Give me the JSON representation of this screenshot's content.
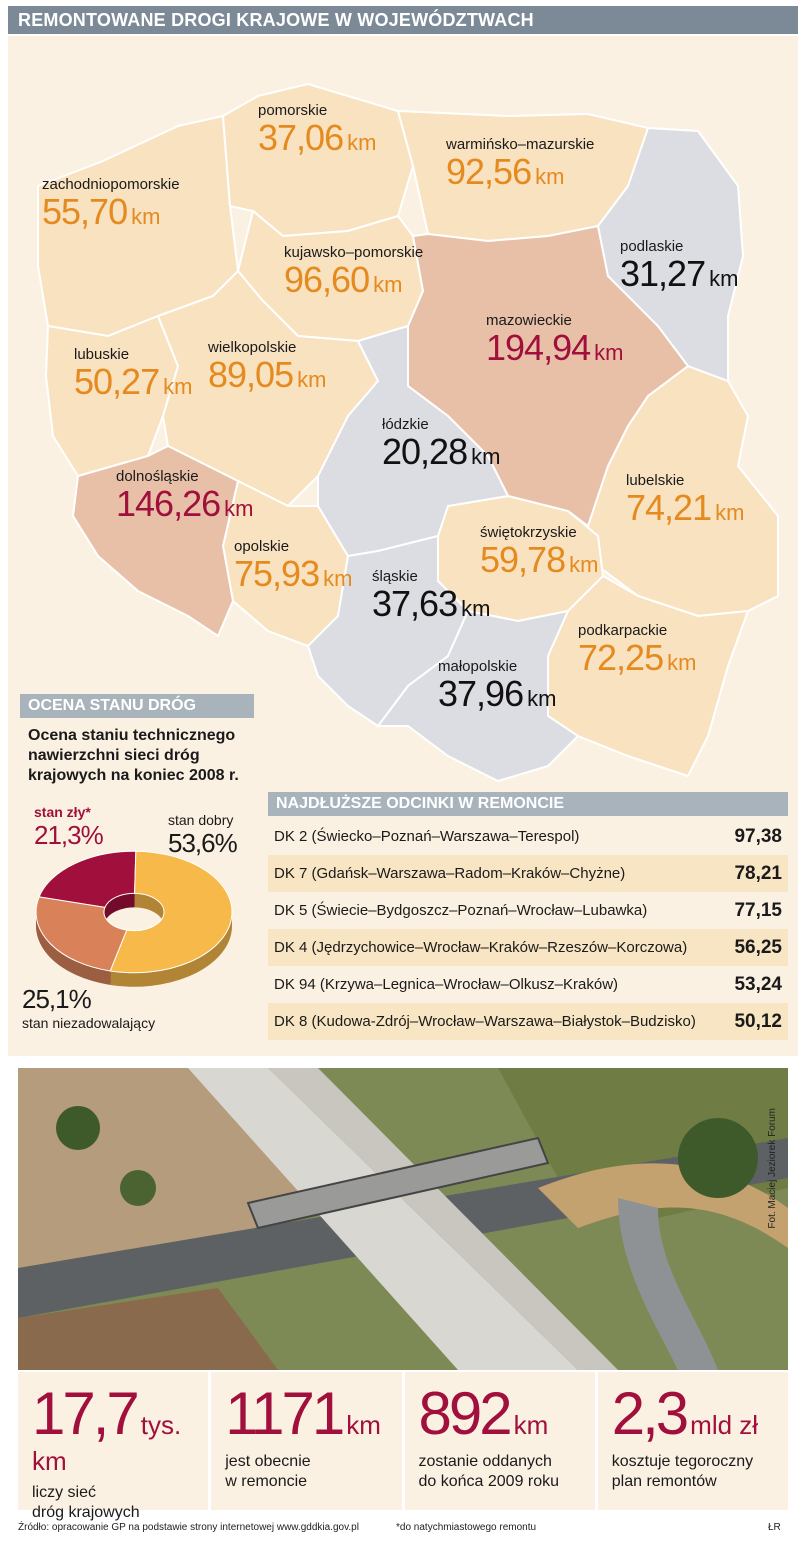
{
  "title": "REMONTOWANE DROGI KRAJOWE W WOJEWÓDZTWACH",
  "unit": "km",
  "regions": [
    {
      "id": "pomorskie",
      "name": "pomorskie",
      "value": "37,06"
    },
    {
      "id": "warminsko",
      "name": "warmińsko–mazurskie",
      "value": "92,56"
    },
    {
      "id": "zachodnio",
      "name": "zachodniopomorskie",
      "value": "55,70"
    },
    {
      "id": "kujawsko",
      "name": "kujawsko–pomorskie",
      "value": "96,60"
    },
    {
      "id": "podlaskie",
      "name": "podlaskie",
      "value": "31,27"
    },
    {
      "id": "mazowieckie",
      "name": "mazowieckie",
      "value": "194,94"
    },
    {
      "id": "lubuskie",
      "name": "lubuskie",
      "value": "50,27"
    },
    {
      "id": "wielkopolskie",
      "name": "wielkopolskie",
      "value": "89,05"
    },
    {
      "id": "lodzkie",
      "name": "łódzkie",
      "value": "20,28"
    },
    {
      "id": "dolnoslaskie",
      "name": "dolnośląskie",
      "value": "146,26"
    },
    {
      "id": "lubelskie",
      "name": "lubelskie",
      "value": "74,21"
    },
    {
      "id": "swietokrzyskie",
      "name": "świętokrzyskie",
      "value": "59,78"
    },
    {
      "id": "opolskie",
      "name": "opolskie",
      "value": "75,93"
    },
    {
      "id": "slaskie",
      "name": "śląskie",
      "value": "37,63"
    },
    {
      "id": "podkarpackie",
      "name": "podkarpackie",
      "value": "72,25"
    },
    {
      "id": "malopolskie",
      "name": "małopolskie",
      "value": "37,96"
    }
  ],
  "colors": {
    "orange_text": "#e58a1f",
    "red_text": "#a10f3c",
    "region_light": "#f8e2c0",
    "region_pink": "#e8c0a8",
    "region_gray": "#dcdde2"
  },
  "assessment": {
    "header": "OCENA STANU DRÓG",
    "caption": "Ocena staniu technicznego nawierzchni sieci dróg krajowych na koniec 2008 r.",
    "footnote_mark": "*"
  },
  "chart_data": {
    "type": "pie",
    "title": "Ocena staniu technicznego nawierzchni sieci dróg krajowych na koniec 2008 r.",
    "slices": [
      {
        "label": "stan dobry",
        "value": 53.6,
        "display": "53,6%",
        "color": "#f6b94a"
      },
      {
        "label": "stan niezadowalający",
        "value": 25.1,
        "display": "25,1%",
        "color": "#d9825a"
      },
      {
        "label": "stan zły*",
        "value": 21.3,
        "display": "21,3%",
        "color": "#a10f3c"
      }
    ]
  },
  "roads": {
    "header": "NAJDŁUŻSZE ODCINKI W REMONCIE",
    "rows": [
      {
        "name": "DK 2 (Świecko–Poznań–Warszawa–Terespol)",
        "value": "97,38"
      },
      {
        "name": "DK 7 (Gdańsk–Warszawa–Radom–Kraków–Chyżne)",
        "value": "78,21"
      },
      {
        "name": "DK 5 (Świecie–Bydgoszcz–Poznań–Wrocław–Lubawka)",
        "value": "77,15"
      },
      {
        "name": "DK 4 (Jędrzychowice–Wrocław–Kraków–Rzeszów–Korczowa)",
        "value": "56,25"
      },
      {
        "name": "DK 94 (Krzywa–Legnica–Wrocław–Olkusz–Kraków)",
        "value": "53,24"
      },
      {
        "name": "DK 8 (Kudowa-Zdrój–Wrocław–Warszawa–Białystok–Budzisko)",
        "value": "50,12"
      }
    ]
  },
  "photo_credit": "Fot. Maciej Jeziorek Forum",
  "stats": [
    {
      "big": "17,7",
      "unit": "tys. km",
      "line1": "liczy sieć",
      "line2": "dróg krajowych"
    },
    {
      "big": "1171",
      "unit": "km",
      "line1": "jest obecnie",
      "line2": "w remoncie"
    },
    {
      "big": "892",
      "unit": "km",
      "line1": "zostanie oddanych",
      "line2": "do końca 2009 roku"
    },
    {
      "big": "2,3",
      "unit": "mld zł",
      "line1": "kosztuje tegoroczny",
      "line2": "plan remontów"
    }
  ],
  "footer": {
    "source": "Źródło: opracowanie GP na podstawie strony internetowej www.gddkia.gov.pl",
    "note": "*do natychmiastowego remontu",
    "sign": "ŁR"
  }
}
